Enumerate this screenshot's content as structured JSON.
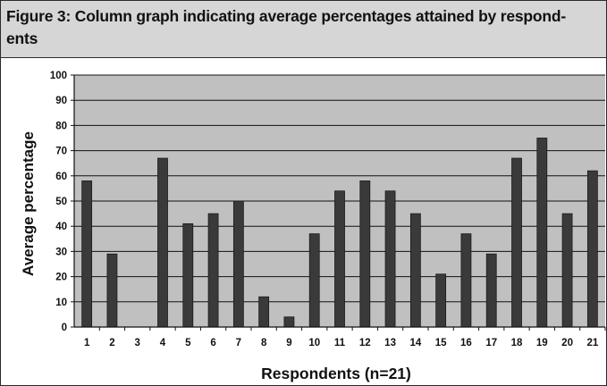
{
  "figure": {
    "title": "Figure 3: Column graph indicating average percentages attained by respond-ents"
  },
  "colors": {
    "header_bg": "#d6d6d6",
    "plot_bg": "#c0c0c0",
    "bar": "#3a3a3a",
    "grid": "#111111"
  },
  "chart_data": {
    "type": "bar",
    "title": "",
    "xlabel": "Respondents (n=21)",
    "ylabel": "Average percentage",
    "ylim": [
      0,
      100
    ],
    "yticks": [
      0,
      10,
      20,
      30,
      40,
      50,
      60,
      70,
      80,
      90,
      100
    ],
    "grid": true,
    "legend": "none",
    "categories": [
      "1",
      "2",
      "3",
      "4",
      "5",
      "6",
      "7",
      "8",
      "9",
      "10",
      "11",
      "12",
      "13",
      "14",
      "15",
      "16",
      "17",
      "18",
      "19",
      "20",
      "21"
    ],
    "values": [
      58,
      29,
      0,
      67,
      41,
      45,
      50,
      12,
      4,
      37,
      54,
      58,
      54,
      45,
      21,
      37,
      29,
      67,
      75,
      45,
      62
    ]
  }
}
